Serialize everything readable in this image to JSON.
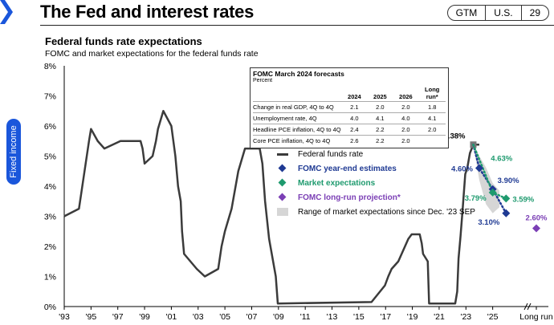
{
  "header": {
    "title": "The Fed and interest rates",
    "badges": [
      "GTM",
      "U.S.",
      "29"
    ]
  },
  "side_tab": {
    "label": "Fixed income"
  },
  "colors": {
    "fed_funds": "#3b3b3b",
    "fomc": "#1f3a93",
    "market": "#1e9a6e",
    "long_run": "#7b3fb5",
    "range": "#d6d6d6",
    "accent": "#1a56db"
  },
  "chart_data": {
    "type": "line",
    "title": "Federal funds rate expectations",
    "subtitle": "FOMC and market expectations for the federal funds rate",
    "ylim": [
      0,
      8
    ],
    "yticks": [
      "0%",
      "1%",
      "2%",
      "3%",
      "4%",
      "5%",
      "6%",
      "7%",
      "8%"
    ],
    "xticks": [
      "'93",
      "'95",
      "'97",
      "'99",
      "'01",
      "'03",
      "'05",
      "'07",
      "'09",
      "'11",
      "'13",
      "'15",
      "'17",
      "'19",
      "'21",
      "'23",
      "'25"
    ],
    "xlim": [
      1993,
      2027
    ],
    "long_run_label": "Long run",
    "series": [
      {
        "name": "Federal funds rate",
        "x": [
          1993,
          1994.1,
          1994.35,
          1994.6,
          1994.85,
          1995.0,
          1995.5,
          1996.0,
          1997.2,
          1998.7,
          1998.85,
          1999.0,
          1999.6,
          1999.85,
          2000.0,
          2000.4,
          2001.0,
          2001.3,
          2001.5,
          2001.7,
          2001.8,
          2001.95,
          2002.9,
          2003.5,
          2004.5,
          2004.75,
          2005.0,
          2005.5,
          2006.0,
          2006.5,
          2007.6,
          2007.8,
          2008.0,
          2008.3,
          2008.8,
          2008.95,
          2015.95,
          2016.95,
          2017.2,
          2017.45,
          2017.95,
          2018.2,
          2018.45,
          2018.7,
          2018.95,
          2019.55,
          2019.7,
          2019.8,
          2020.15,
          2020.25,
          2022.2,
          2022.35,
          2022.45,
          2022.6,
          2022.75,
          2022.95,
          2023.1,
          2023.3,
          2023.55,
          2024.0
        ],
        "y": [
          3.0,
          3.25,
          4.0,
          4.75,
          5.5,
          5.9,
          5.5,
          5.25,
          5.5,
          5.5,
          5.25,
          4.75,
          5.0,
          5.5,
          5.9,
          6.5,
          6.0,
          5.0,
          4.0,
          3.5,
          2.5,
          1.75,
          1.25,
          1.0,
          1.25,
          2.0,
          2.5,
          3.25,
          4.5,
          5.25,
          5.25,
          4.75,
          3.5,
          2.25,
          1.0,
          0.1,
          0.15,
          0.7,
          1.0,
          1.25,
          1.5,
          1.75,
          2.0,
          2.25,
          2.4,
          2.4,
          2.1,
          1.75,
          1.5,
          0.1,
          0.1,
          0.5,
          1.6,
          2.35,
          3.2,
          4.4,
          4.6,
          5.1,
          5.38,
          5.38
        ]
      },
      {
        "name": "FOMC year-end estimates",
        "x": [
          2024.0,
          2025.0,
          2026.0
        ],
        "y": [
          4.6,
          3.9,
          3.1
        ]
      },
      {
        "name": "Market expectations",
        "x": [
          2025.0,
          2026.0
        ],
        "y": [
          3.79,
          3.59
        ]
      },
      {
        "name": "FOMC long-run projection*",
        "x": [
          "Long run"
        ],
        "y": [
          2.6
        ]
      }
    ],
    "range_band": {
      "name": "Range of market expectations since Dec. '23 SEP",
      "x": [
        2023.55,
        2024.0,
        2024.5,
        2025.0,
        2025.5
      ],
      "upper": [
        5.38,
        5.0,
        4.62,
        4.1,
        3.85
      ],
      "lower": [
        5.38,
        4.2,
        3.4,
        3.1,
        3.3
      ]
    },
    "annotations": [
      {
        "text": "5.38%",
        "x": 2023.55,
        "y": 5.38
      },
      {
        "text": "4.63%",
        "x": 2024.5,
        "y": 4.63
      },
      {
        "text": "4.60%",
        "x": 2024.0,
        "y": 4.6
      },
      {
        "text": "3.90%",
        "x": 2025.0,
        "y": 3.9
      },
      {
        "text": "3.79%",
        "x": 2025.0,
        "y": 3.79
      },
      {
        "text": "3.59%",
        "x": 2026.0,
        "y": 3.59
      },
      {
        "text": "3.10%",
        "x": 2026.0,
        "y": 3.1
      },
      {
        "text": "2.60%",
        "x": "Long run",
        "y": 2.6
      }
    ],
    "table": {
      "title": "FOMC March 2024 forecasts",
      "unit": "Percent",
      "columns": [
        "2024",
        "2025",
        "2026",
        "Long run*"
      ],
      "rows": [
        {
          "label": "Change in real GDP, 4Q to 4Q",
          "values": [
            "2.1",
            "2.0",
            "2.0",
            "1.8"
          ]
        },
        {
          "label": "Unemployment rate, 4Q",
          "values": [
            "4.0",
            "4.1",
            "4.0",
            "4.1"
          ]
        },
        {
          "label": "Headline PCE inflation, 4Q to 4Q",
          "values": [
            "2.4",
            "2.2",
            "2.0",
            "2.0"
          ]
        },
        {
          "label": "Core PCE inflation, 4Q to 4Q",
          "values": [
            "2.6",
            "2.2",
            "2.0",
            ""
          ]
        }
      ]
    }
  }
}
